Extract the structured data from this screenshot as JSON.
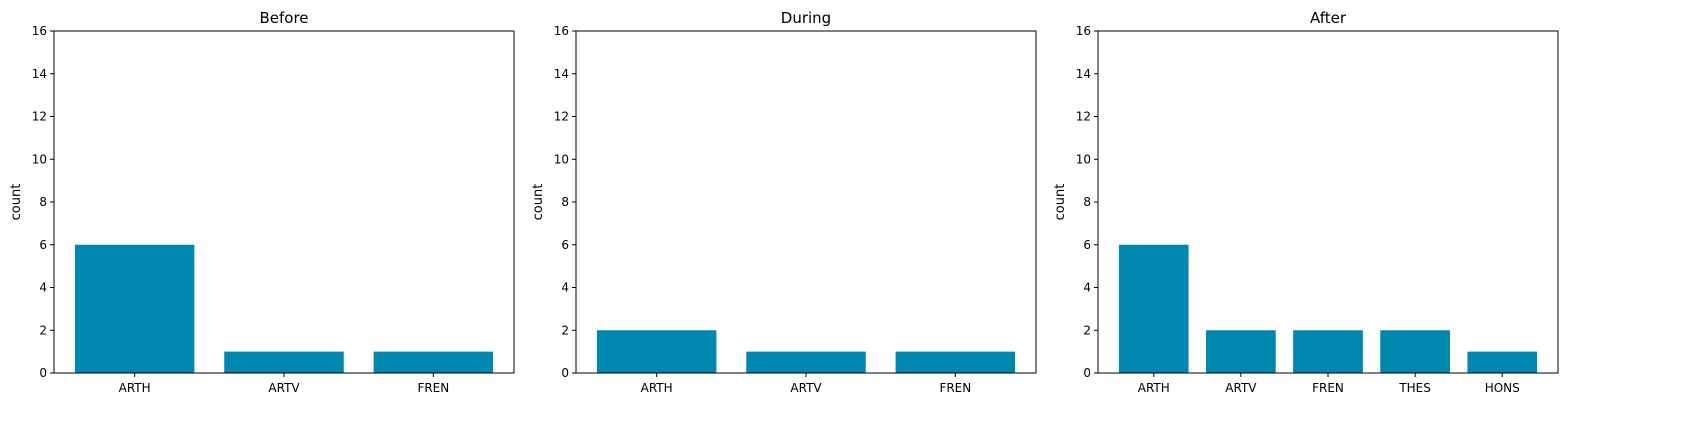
{
  "chart_data": [
    {
      "type": "bar",
      "title": "Before",
      "ylabel": "count",
      "xlabel": "",
      "categories": [
        "ARTH",
        "ARTV",
        "FREN"
      ],
      "values": [
        6,
        1,
        1
      ],
      "ylim": [
        0,
        16
      ],
      "yticks": [
        "0",
        "2",
        "4",
        "6",
        "8",
        "10",
        "12",
        "14",
        "16"
      ],
      "bar_color": "#0087ad",
      "grid": false
    },
    {
      "type": "bar",
      "title": "During",
      "ylabel": "count",
      "xlabel": "",
      "categories": [
        "ARTH",
        "ARTV",
        "FREN"
      ],
      "values": [
        2,
        1,
        1
      ],
      "ylim": [
        0,
        16
      ],
      "yticks": [
        "0",
        "2",
        "4",
        "6",
        "8",
        "10",
        "12",
        "14",
        "16"
      ],
      "bar_color": "#0087ad",
      "grid": false
    },
    {
      "type": "bar",
      "title": "After",
      "ylabel": "count",
      "xlabel": "",
      "categories": [
        "ARTH",
        "ARTV",
        "FREN",
        "THES",
        "HONS"
      ],
      "values": [
        6,
        2,
        2,
        2,
        1
      ],
      "ylim": [
        0,
        16
      ],
      "yticks": [
        "0",
        "2",
        "4",
        "6",
        "8",
        "10",
        "12",
        "14",
        "16"
      ],
      "bar_color": "#0087ad",
      "grid": false
    }
  ]
}
